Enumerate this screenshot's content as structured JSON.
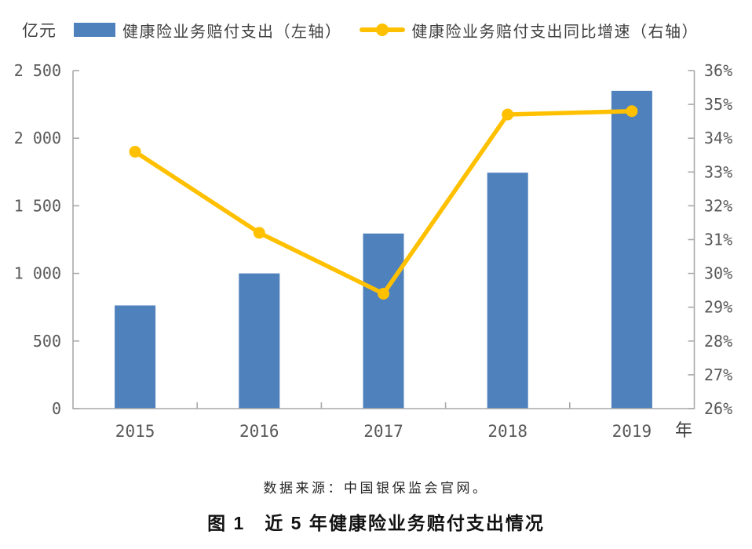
{
  "chart": {
    "unit_label": "亿元",
    "legend": [
      {
        "label": "健康险业务赔付支出（左轴）",
        "type": "bar"
      },
      {
        "label": "健康险业务赔付支出同比增速（右轴）",
        "type": "line"
      }
    ]
  },
  "chart_data": {
    "type": "bar+line",
    "title": "近 5 年健康险业务赔付支出情况",
    "categories": [
      "2015",
      "2016",
      "2017",
      "2018",
      "2019"
    ],
    "series": [
      {
        "name": "健康险业务赔付支出（左轴）",
        "type": "bar",
        "axis": "left",
        "unit": "亿元",
        "values": [
          763,
          1000,
          1295,
          1745,
          2350
        ],
        "color": "#4F81BD"
      },
      {
        "name": "健康险业务赔付支出同比增速（右轴）",
        "type": "line",
        "axis": "right",
        "unit": "%",
        "values": [
          33.6,
          31.2,
          29.4,
          34.7,
          34.8
        ],
        "color": "#FFC000"
      }
    ],
    "left_axis": {
      "min": 0,
      "max": 2500,
      "step": 500,
      "tick_labels": [
        "0",
        "500",
        "1 000",
        "1 500",
        "2 000",
        "2 500"
      ],
      "title": "亿元"
    },
    "right_axis": {
      "min": 26,
      "max": 36,
      "step": 1,
      "tick_labels": [
        "26%",
        "27%",
        "28%",
        "29%",
        "30%",
        "31%",
        "32%",
        "33%",
        "34%",
        "35%",
        "36%"
      ]
    },
    "x_axis": {
      "title": "年"
    },
    "grid": false,
    "legend_position": "top"
  },
  "style": {
    "axis_color": "#A9A9A9",
    "tick_text_color": "#595959",
    "bar_color": "#4F81BD",
    "line_color": "#FFC000"
  },
  "footer": {
    "source": "数据来源：中国银保监会官网。",
    "caption": "图 1　近 5 年健康险业务赔付支出情况"
  }
}
